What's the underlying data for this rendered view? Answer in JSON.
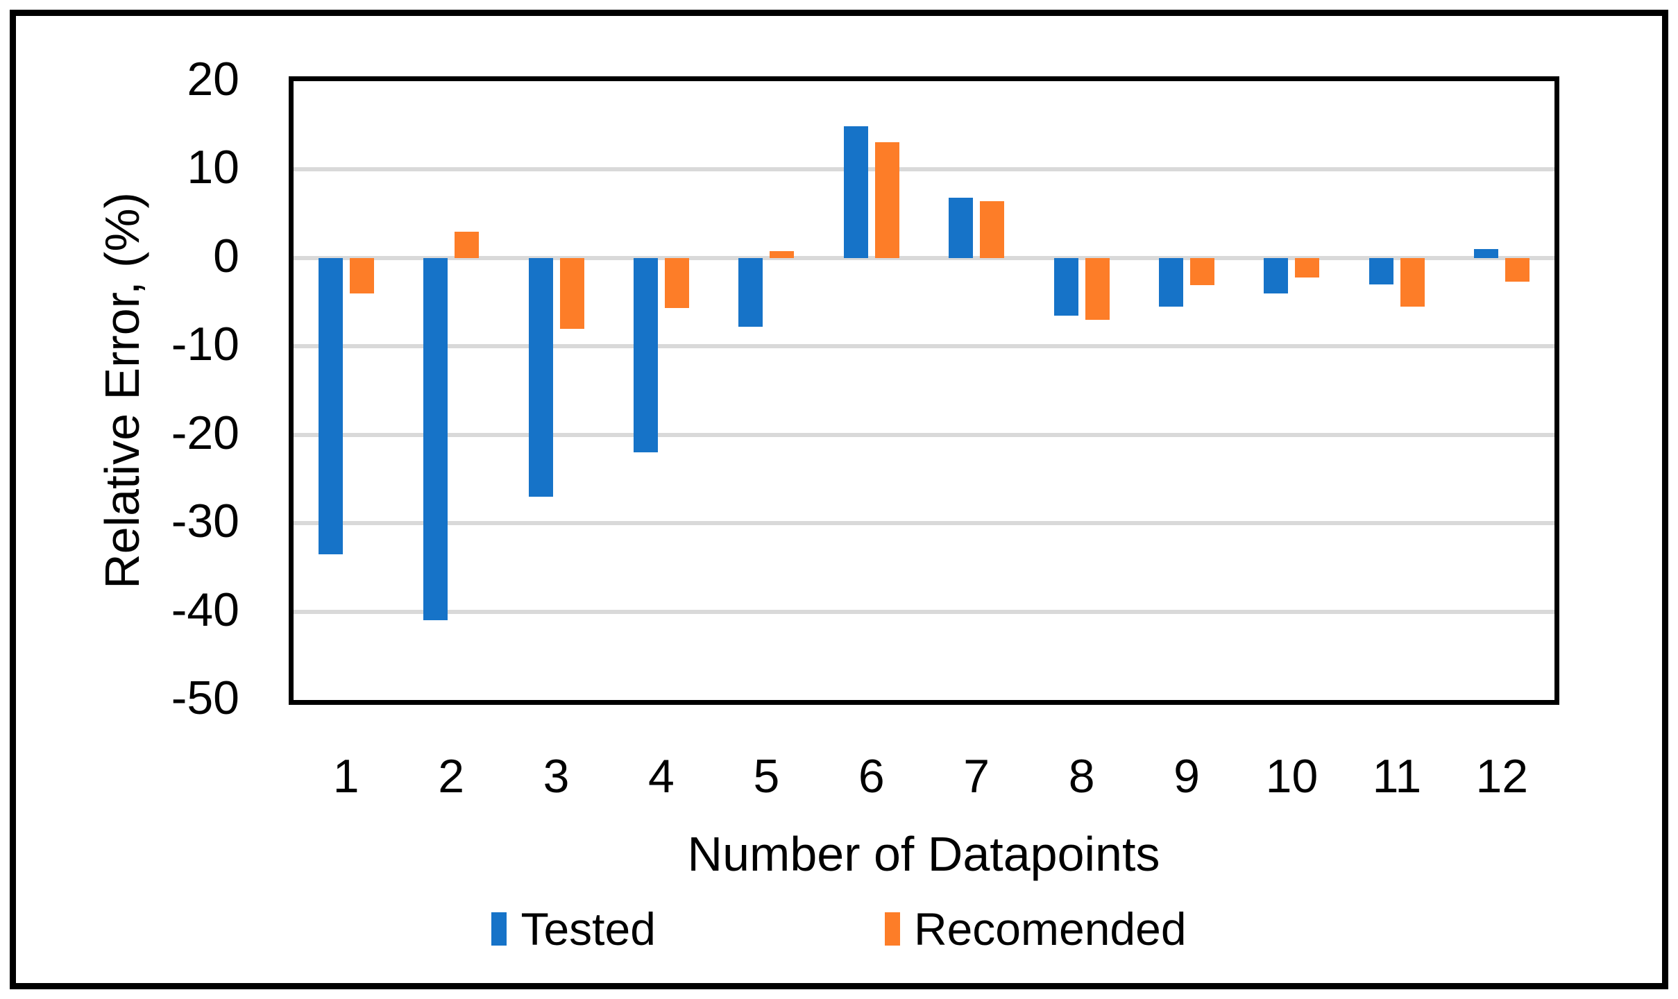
{
  "chart_data": {
    "type": "bar",
    "title": "",
    "categories": [
      "1",
      "2",
      "3",
      "4",
      "5",
      "6",
      "7",
      "8",
      "9",
      "10",
      "11",
      "12"
    ],
    "series": [
      {
        "name": "Tested",
        "color": "#1673C8",
        "values": [
          -33.5,
          -41,
          -27,
          -22,
          -7.8,
          14.9,
          6.8,
          -6.5,
          -5.5,
          -4,
          -3,
          1
        ]
      },
      {
        "name": "Recomended",
        "color": "#FD7D28",
        "values": [
          -4,
          3,
          -8,
          -5.7,
          0.8,
          13.1,
          6.4,
          -7,
          -3.1,
          -2.2,
          -5.5,
          -2.7
        ]
      }
    ],
    "xlabel": "Number of Datapoints",
    "ylabel": "Relative Error, (%)",
    "ylim": [
      -50,
      20
    ],
    "yticks": [
      20,
      10,
      0,
      -10,
      -20,
      -30,
      -40,
      -50
    ],
    "gridline_values": [
      10,
      0,
      -10,
      -20,
      -30,
      -40
    ],
    "grid": true,
    "legend_position": "bottom"
  },
  "colors": {
    "background": "#FFFFFF",
    "border": "#000000",
    "gridline": "#D9D9D9",
    "text": "#000000"
  }
}
